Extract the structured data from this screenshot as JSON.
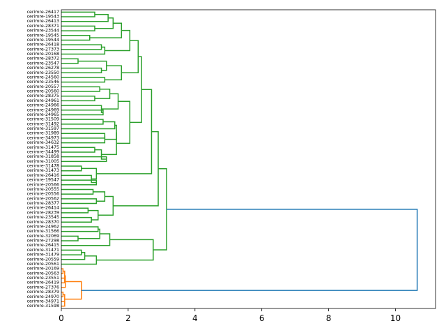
{
  "chart_data": {
    "type": "dendrogram",
    "orientation": "horizontal",
    "x_ticks": [
      0,
      2,
      4,
      6,
      8,
      10
    ],
    "xlim": [
      0,
      11.2
    ],
    "leaves": [
      "cerimre-26417",
      "cerimre-19543",
      "cerimre-26413",
      "cerimre-28371",
      "cerimre-23544",
      "cerimre-19545",
      "cerimre-19544",
      "cerimre-26418",
      "cerimre-27373",
      "cerimre-20168",
      "cerimre-28372",
      "cerimre-23547",
      "cerimre-26278",
      "cerimre-23550",
      "cerimre-24560",
      "cerimre-23546",
      "cerimre-20557",
      "cerimre-20560",
      "cerimre-28375",
      "cerimre-24961",
      "cerimre-24966",
      "cerimre-24969",
      "cerimre-24965",
      "cerimre-31509",
      "cerimre-31492",
      "cerimre-31597",
      "cerimre-31989",
      "cerimre-34973",
      "cerimre-34632",
      "cerimre-31475",
      "cerimre-34499",
      "cerimre-31858",
      "cerimre-31005",
      "cerimre-31478",
      "cerimre-31473",
      "cerimre-26416",
      "cerimre-19547",
      "cerimre-20566",
      "cerimre-20555",
      "cerimre-20556",
      "cerimre-20562",
      "cerimre-28377",
      "cerimre-26414",
      "cerimre-28239",
      "cerimre-23545",
      "cerimre-28370",
      "cerimre-24962",
      "cerimre-31566",
      "cerimre-32069",
      "cerimre-27298",
      "cerimre-26415",
      "cerimre-31471",
      "cerimre-31479",
      "cerimre-20559",
      "cerimre-20561",
      "cerimre-20169",
      "cerimre-20563",
      "cerimre-23551",
      "cerimre-26419",
      "cerimre-27376",
      "cerimre-28379",
      "cerimre-24970",
      "cerimre-34971",
      "cerimre-31598"
    ],
    "merges": [
      {
        "a": "L0",
        "b": "L1",
        "h": 1.0,
        "c": "g"
      },
      {
        "a": "L3",
        "b": "L4",
        "h": 1.0,
        "c": "g"
      },
      {
        "a": "L5",
        "b": "L6",
        "h": 0.85,
        "c": "g"
      },
      {
        "a": "L7",
        "b": "L8",
        "h": 1.2,
        "c": "g"
      },
      {
        "a": "L10",
        "b": "L11",
        "h": 0.5,
        "c": "g"
      },
      {
        "a": "L12",
        "b": "L13",
        "h": 1.2,
        "c": "g"
      },
      {
        "a": "L14",
        "b": "L15",
        "h": 1.3,
        "c": "g"
      },
      {
        "a": "L16",
        "b": "L17",
        "h": 1.15,
        "c": "g"
      },
      {
        "a": "L18",
        "b": "L19",
        "h": 1.0,
        "c": "g"
      },
      {
        "a": "L21",
        "b": "L22",
        "h": 1.25,
        "c": "g"
      },
      {
        "a": "L23",
        "b": "L24",
        "h": 1.25,
        "c": "g"
      },
      {
        "a": "L26",
        "b": "L27",
        "h": 1.3,
        "c": "g"
      },
      {
        "a": "L29",
        "b": "L30",
        "h": 1.0,
        "c": "g"
      },
      {
        "a": "L31",
        "b": "L32",
        "h": 1.35,
        "c": "g"
      },
      {
        "a": "L33",
        "b": "L34",
        "h": 0.6,
        "c": "g"
      },
      {
        "a": "L36",
        "b": "L37",
        "h": 1.05,
        "c": "g"
      },
      {
        "a": "L38",
        "b": "L39",
        "h": 0.95,
        "c": "g"
      },
      {
        "a": "L40",
        "b": "L41",
        "h": 1.05,
        "c": "g"
      },
      {
        "a": "L42",
        "b": "L43",
        "h": 0.8,
        "c": "g"
      },
      {
        "a": "L44",
        "b": "L45",
        "h": 0.9,
        "c": "g"
      },
      {
        "a": "L46",
        "b": "L47",
        "h": 1.1,
        "c": "g"
      },
      {
        "a": "L48",
        "b": "L49",
        "h": 0.5,
        "c": "g"
      },
      {
        "a": "L51",
        "b": "L52",
        "h": 0.6,
        "c": "g"
      },
      {
        "a": "L55",
        "b": "L56",
        "h": 0.05,
        "c": "o"
      },
      {
        "a": "L57",
        "b": "L58",
        "h": 0.1,
        "c": "o"
      },
      {
        "a": "L60",
        "b": "L61",
        "h": 0.05,
        "c": "o"
      },
      {
        "a": "L62",
        "b": "L63",
        "h": 0.1,
        "c": "o"
      },
      {
        "a": "M0",
        "b": "L2",
        "h": 1.4,
        "c": "g"
      },
      {
        "a": "M27",
        "b": "M1",
        "h": 1.55,
        "c": "g"
      },
      {
        "a": "M28",
        "b": "M2",
        "h": 1.8,
        "c": "g"
      },
      {
        "a": "M3",
        "b": "L9",
        "h": 1.3,
        "c": "g"
      },
      {
        "a": "M29",
        "b": "M30",
        "h": 2.05,
        "c": "g"
      },
      {
        "a": "M4",
        "b": "M5",
        "h": 1.35,
        "c": "g"
      },
      {
        "a": "M32",
        "b": "M6",
        "h": 1.8,
        "c": "g"
      },
      {
        "a": "M31",
        "b": "M33",
        "h": 2.3,
        "c": "g"
      },
      {
        "a": "M7",
        "b": "M8",
        "h": 1.45,
        "c": "g"
      },
      {
        "a": "L20",
        "b": "M9",
        "h": 1.2,
        "c": "g"
      },
      {
        "a": "M35",
        "b": "M36",
        "h": 1.7,
        "c": "g"
      },
      {
        "a": "M10",
        "b": "L25",
        "h": 1.6,
        "c": "g"
      },
      {
        "a": "M11",
        "b": "L28",
        "h": 1.3,
        "c": "g"
      },
      {
        "a": "M38",
        "b": "M39",
        "h": 1.65,
        "c": "g"
      },
      {
        "a": "M12",
        "b": "M13",
        "h": 1.2,
        "c": "g"
      },
      {
        "a": "M40",
        "b": "M41",
        "h": 1.65,
        "c": "g"
      },
      {
        "a": "M37",
        "b": "M42",
        "h": 2.05,
        "c": "g"
      },
      {
        "a": "M34",
        "b": "M43",
        "h": 2.4,
        "c": "g"
      },
      {
        "a": "L35",
        "b": "M15",
        "h": 0.9,
        "c": "g"
      },
      {
        "a": "M14",
        "b": "M45",
        "h": 1.05,
        "c": "g"
      },
      {
        "a": "M44",
        "b": "M46",
        "h": 2.7,
        "c": "g"
      },
      {
        "a": "M16",
        "b": "M17",
        "h": 1.3,
        "c": "g"
      },
      {
        "a": "M18",
        "b": "M19",
        "h": 1.1,
        "c": "g"
      },
      {
        "a": "M48",
        "b": "M49",
        "h": 1.55,
        "c": "g"
      },
      {
        "a": "M47",
        "b": "M50",
        "h": 2.9,
        "c": "g"
      },
      {
        "a": "M20",
        "b": "M21",
        "h": 1.15,
        "c": "g"
      },
      {
        "a": "M52",
        "b": "L50",
        "h": 1.45,
        "c": "g"
      },
      {
        "a": "M22",
        "b": "L53",
        "h": 0.7,
        "c": "g"
      },
      {
        "a": "M54",
        "b": "L54",
        "h": 1.05,
        "c": "g"
      },
      {
        "a": "M53",
        "b": "M55",
        "h": 2.75,
        "c": "g"
      },
      {
        "a": "M51",
        "b": "M56",
        "h": 3.15,
        "c": "g"
      },
      {
        "a": "M23",
        "b": "M24",
        "h": 0.1,
        "c": "o"
      },
      {
        "a": "L59",
        "b": "M58",
        "h": 0.12,
        "c": "o"
      },
      {
        "a": "M25",
        "b": "M26",
        "h": 0.1,
        "c": "o"
      },
      {
        "a": "M59",
        "b": "M60",
        "h": 0.6,
        "c": "o"
      },
      {
        "a": "M57",
        "b": "M61",
        "h": 10.65,
        "c": "b"
      }
    ],
    "colors": {
      "g": "#2ca02c",
      "o": "#ff7f0e",
      "b": "#1f77b4"
    }
  }
}
